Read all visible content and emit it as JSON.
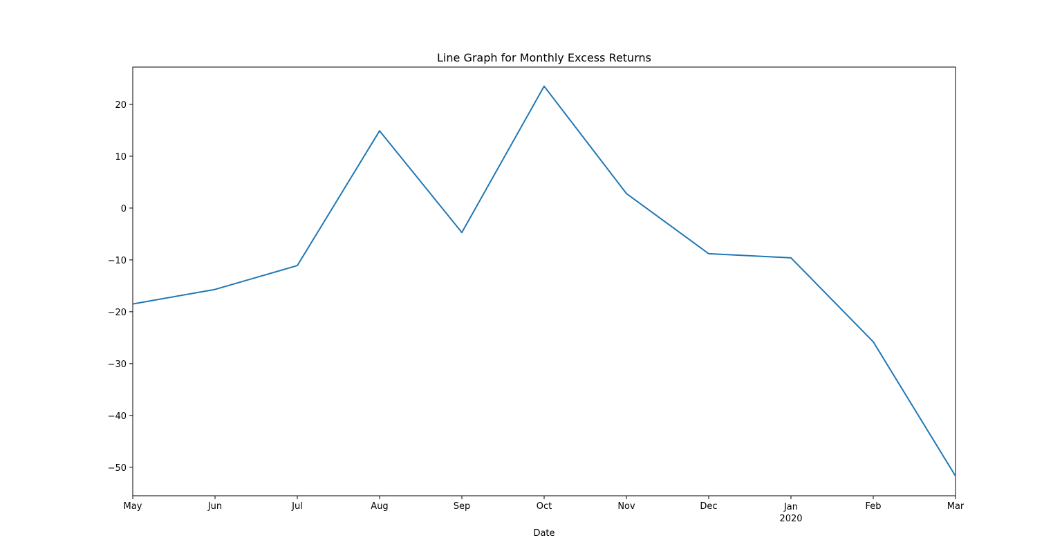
{
  "chart_data": {
    "type": "line",
    "title": "Line Graph for Monthly Excess Returns",
    "xlabel": "Date",
    "ylabel": "",
    "x": [
      "May",
      "Jun",
      "Jul",
      "Aug",
      "Sep",
      "Oct",
      "Nov",
      "Dec",
      "Jan",
      "Feb",
      "Mar"
    ],
    "x_year_label": "2020",
    "x_year_under": "Jan",
    "series": [
      {
        "color": "#1f77b4",
        "values": [
          -18.5,
          -15.7,
          -11.1,
          14.9,
          -4.7,
          23.5,
          2.8,
          -8.8,
          -9.6,
          -25.8,
          -51.7
        ]
      }
    ],
    "ylim": [
      -55.5,
      27.2
    ],
    "yticks": [
      -50,
      -40,
      -30,
      -20,
      -10,
      0,
      10,
      20
    ],
    "ytick_labels": [
      "−50",
      "−40",
      "−30",
      "−20",
      "−10",
      "0",
      "10",
      "20"
    ],
    "grid": false,
    "legend": false
  }
}
